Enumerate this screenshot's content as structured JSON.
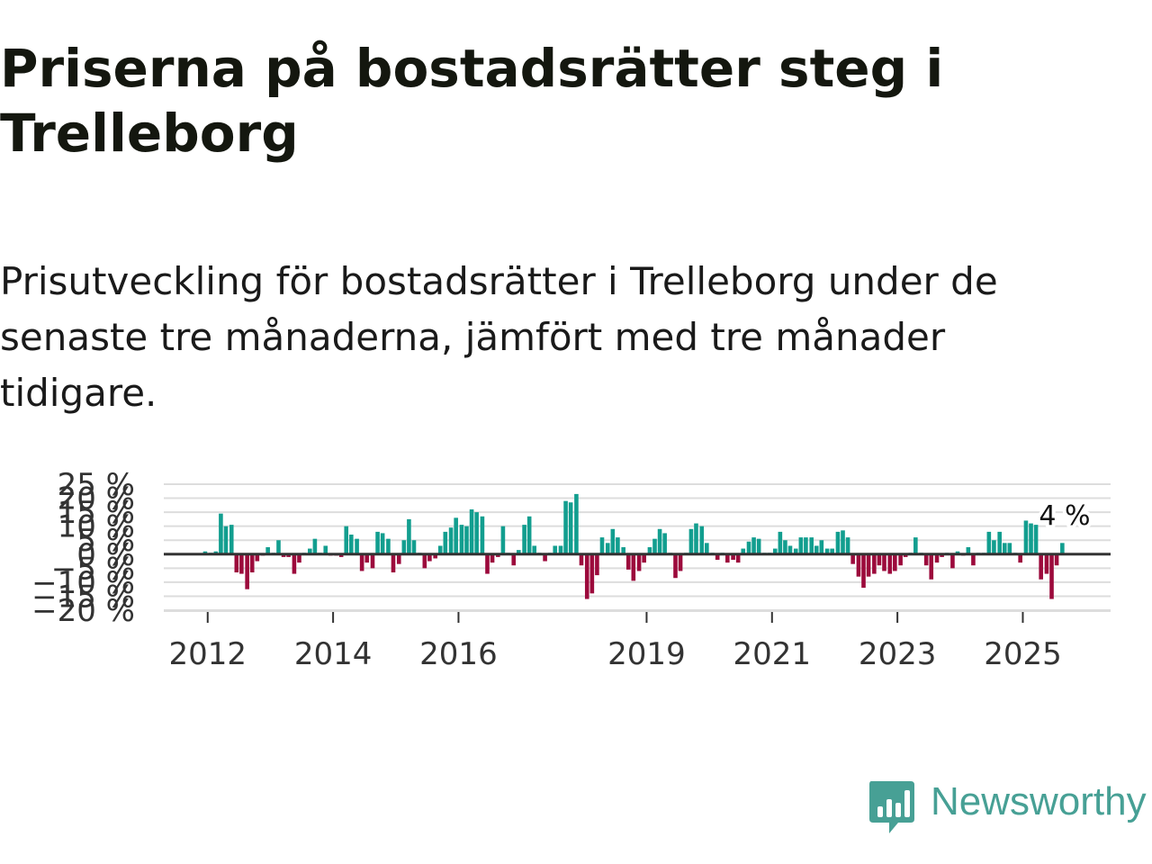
{
  "header": {
    "title": "Priserna på bostadsrätter steg i Trelleborg",
    "subtitle": "Prisutveckling för bostadsrätter i Trelleborg under de senaste tre månaderna, jämfört med tre månader tidigare."
  },
  "brand": {
    "name": "Newsworthy",
    "color": "#47A095"
  },
  "chart_data": {
    "type": "bar",
    "title": "Priserna på bostadsrätter steg i Trelleborg",
    "subtitle": "Prisutveckling för bostadsrätter i Trelleborg under de senaste tre månaderna, jämfört med tre månader tidigare.",
    "xlabel": "",
    "ylabel": "",
    "x_tick_labels": [
      "2012",
      "2014",
      "2016",
      "2019",
      "2021",
      "2023",
      "2025"
    ],
    "x_tick_years": [
      2012,
      2014,
      2016,
      2019,
      2021,
      2023,
      2025
    ],
    "y_tick_labels": [
      "25 %",
      "20 %",
      "15 %",
      "10 %",
      "5 %",
      "0 %",
      "−5 %",
      "−10 %",
      "−15 %",
      "−20 %"
    ],
    "y_ticks": [
      25,
      20,
      15,
      10,
      5,
      0,
      -5,
      -10,
      -15,
      -20
    ],
    "ylim": [
      -20,
      25
    ],
    "xlim": [
      2011.3,
      2026.4
    ],
    "grid": true,
    "colors": {
      "positive": "#129E8F",
      "negative": "#9C0A3C",
      "zero_line": "#333333",
      "grid": "#dddddd"
    },
    "annotation": {
      "text": "4 %"
    },
    "series": [
      {
        "x": 2011.96,
        "value": 1
      },
      {
        "x": 2012.05,
        "value": 0.5
      },
      {
        "x": 2012.13,
        "value": 1
      },
      {
        "x": 2012.21,
        "value": 14.5
      },
      {
        "x": 2012.29,
        "value": 10
      },
      {
        "x": 2012.38,
        "value": 10.5
      },
      {
        "x": 2012.46,
        "value": -6.5
      },
      {
        "x": 2012.54,
        "value": -7
      },
      {
        "x": 2012.63,
        "value": -12.5
      },
      {
        "x": 2012.71,
        "value": -6.5
      },
      {
        "x": 2012.79,
        "value": -2.5
      },
      {
        "x": 2012.88,
        "value": -0.5
      },
      {
        "x": 2012.96,
        "value": 2.5
      },
      {
        "x": 2013.05,
        "value": 0.5
      },
      {
        "x": 2013.13,
        "value": 5
      },
      {
        "x": 2013.21,
        "value": -1
      },
      {
        "x": 2013.29,
        "value": -1
      },
      {
        "x": 2013.38,
        "value": -7
      },
      {
        "x": 2013.46,
        "value": -3
      },
      {
        "x": 2013.54,
        "value": 0.5
      },
      {
        "x": 2013.63,
        "value": 2
      },
      {
        "x": 2013.71,
        "value": 5.5
      },
      {
        "x": 2013.79,
        "value": 0.5
      },
      {
        "x": 2013.88,
        "value": 3
      },
      {
        "x": 2013.96,
        "value": -0.5
      },
      {
        "x": 2014.05,
        "value": -0.5
      },
      {
        "x": 2014.13,
        "value": -1
      },
      {
        "x": 2014.21,
        "value": 10
      },
      {
        "x": 2014.29,
        "value": 7
      },
      {
        "x": 2014.38,
        "value": 5.5
      },
      {
        "x": 2014.46,
        "value": -6
      },
      {
        "x": 2014.54,
        "value": -3
      },
      {
        "x": 2014.63,
        "value": -5
      },
      {
        "x": 2014.71,
        "value": 8
      },
      {
        "x": 2014.79,
        "value": 7.5
      },
      {
        "x": 2014.88,
        "value": 5.5
      },
      {
        "x": 2014.96,
        "value": -6.5
      },
      {
        "x": 2015.05,
        "value": -3.5
      },
      {
        "x": 2015.13,
        "value": 5
      },
      {
        "x": 2015.21,
        "value": 12.5
      },
      {
        "x": 2015.29,
        "value": 5
      },
      {
        "x": 2015.38,
        "value": 0.5
      },
      {
        "x": 2015.46,
        "value": -5
      },
      {
        "x": 2015.54,
        "value": -2.5
      },
      {
        "x": 2015.63,
        "value": -1.5
      },
      {
        "x": 2015.71,
        "value": 3
      },
      {
        "x": 2015.79,
        "value": 8
      },
      {
        "x": 2015.88,
        "value": 9.5
      },
      {
        "x": 2015.96,
        "value": 13
      },
      {
        "x": 2016.05,
        "value": 10.5
      },
      {
        "x": 2016.13,
        "value": 10
      },
      {
        "x": 2016.21,
        "value": 16
      },
      {
        "x": 2016.29,
        "value": 15
      },
      {
        "x": 2016.38,
        "value": 13.5
      },
      {
        "x": 2016.46,
        "value": -7
      },
      {
        "x": 2016.54,
        "value": -3
      },
      {
        "x": 2016.63,
        "value": -1
      },
      {
        "x": 2016.71,
        "value": 10
      },
      {
        "x": 2016.79,
        "value": 0.5
      },
      {
        "x": 2016.88,
        "value": -4
      },
      {
        "x": 2016.96,
        "value": 1.5
      },
      {
        "x": 2017.05,
        "value": 10.5
      },
      {
        "x": 2017.13,
        "value": 13.5
      },
      {
        "x": 2017.21,
        "value": 3
      },
      {
        "x": 2017.29,
        "value": 0.5
      },
      {
        "x": 2017.38,
        "value": -2.5
      },
      {
        "x": 2017.46,
        "value": 0.5
      },
      {
        "x": 2017.54,
        "value": 3
      },
      {
        "x": 2017.63,
        "value": 3
      },
      {
        "x": 2017.71,
        "value": 19
      },
      {
        "x": 2017.79,
        "value": 18.5
      },
      {
        "x": 2017.88,
        "value": 21.5
      },
      {
        "x": 2017.96,
        "value": -4
      },
      {
        "x": 2018.05,
        "value": -16
      },
      {
        "x": 2018.13,
        "value": -14
      },
      {
        "x": 2018.21,
        "value": -7.5
      },
      {
        "x": 2018.29,
        "value": 6
      },
      {
        "x": 2018.38,
        "value": 4
      },
      {
        "x": 2018.46,
        "value": 9
      },
      {
        "x": 2018.54,
        "value": 6
      },
      {
        "x": 2018.63,
        "value": 2.5
      },
      {
        "x": 2018.71,
        "value": -5.5
      },
      {
        "x": 2018.79,
        "value": -9.5
      },
      {
        "x": 2018.88,
        "value": -6
      },
      {
        "x": 2018.96,
        "value": -3
      },
      {
        "x": 2019.05,
        "value": 2.5
      },
      {
        "x": 2019.13,
        "value": 5.5
      },
      {
        "x": 2019.21,
        "value": 9
      },
      {
        "x": 2019.29,
        "value": 7.5
      },
      {
        "x": 2019.38,
        "value": 0.5
      },
      {
        "x": 2019.46,
        "value": -8.5
      },
      {
        "x": 2019.54,
        "value": -6
      },
      {
        "x": 2019.63,
        "value": 0.5
      },
      {
        "x": 2019.71,
        "value": 9
      },
      {
        "x": 2019.79,
        "value": 11
      },
      {
        "x": 2019.88,
        "value": 10
      },
      {
        "x": 2019.96,
        "value": 4
      },
      {
        "x": 2020.05,
        "value": 0.5
      },
      {
        "x": 2020.13,
        "value": -2
      },
      {
        "x": 2020.21,
        "value": 0.5
      },
      {
        "x": 2020.29,
        "value": -3
      },
      {
        "x": 2020.38,
        "value": -2
      },
      {
        "x": 2020.46,
        "value": -3
      },
      {
        "x": 2020.54,
        "value": 2
      },
      {
        "x": 2020.63,
        "value": 4.5
      },
      {
        "x": 2020.71,
        "value": 6
      },
      {
        "x": 2020.79,
        "value": 5.5
      },
      {
        "x": 2020.88,
        "value": 0.5
      },
      {
        "x": 2020.96,
        "value": 0.5
      },
      {
        "x": 2021.05,
        "value": 2
      },
      {
        "x": 2021.13,
        "value": 8
      },
      {
        "x": 2021.21,
        "value": 5
      },
      {
        "x": 2021.29,
        "value": 3
      },
      {
        "x": 2021.38,
        "value": 2
      },
      {
        "x": 2021.46,
        "value": 6
      },
      {
        "x": 2021.54,
        "value": 6
      },
      {
        "x": 2021.63,
        "value": 6
      },
      {
        "x": 2021.71,
        "value": 3
      },
      {
        "x": 2021.79,
        "value": 5
      },
      {
        "x": 2021.88,
        "value": 2
      },
      {
        "x": 2021.96,
        "value": 2
      },
      {
        "x": 2022.05,
        "value": 8
      },
      {
        "x": 2022.13,
        "value": 8.5
      },
      {
        "x": 2022.21,
        "value": 6
      },
      {
        "x": 2022.29,
        "value": -3.5
      },
      {
        "x": 2022.38,
        "value": -8
      },
      {
        "x": 2022.46,
        "value": -12
      },
      {
        "x": 2022.54,
        "value": -8
      },
      {
        "x": 2022.63,
        "value": -7
      },
      {
        "x": 2022.71,
        "value": -4
      },
      {
        "x": 2022.79,
        "value": -6
      },
      {
        "x": 2022.88,
        "value": -7
      },
      {
        "x": 2022.96,
        "value": -6
      },
      {
        "x": 2023.05,
        "value": -4
      },
      {
        "x": 2023.13,
        "value": -1
      },
      {
        "x": 2023.21,
        "value": 0.5
      },
      {
        "x": 2023.29,
        "value": 6
      },
      {
        "x": 2023.38,
        "value": 0.5
      },
      {
        "x": 2023.46,
        "value": -4
      },
      {
        "x": 2023.54,
        "value": -9
      },
      {
        "x": 2023.63,
        "value": -3
      },
      {
        "x": 2023.71,
        "value": -1
      },
      {
        "x": 2023.79,
        "value": 0.5
      },
      {
        "x": 2023.88,
        "value": -5
      },
      {
        "x": 2023.96,
        "value": 1
      },
      {
        "x": 2024.05,
        "value": -0.5
      },
      {
        "x": 2024.13,
        "value": 2.5
      },
      {
        "x": 2024.21,
        "value": -4
      },
      {
        "x": 2024.29,
        "value": 0.5
      },
      {
        "x": 2024.38,
        "value": 0.5
      },
      {
        "x": 2024.46,
        "value": 8
      },
      {
        "x": 2024.54,
        "value": 5
      },
      {
        "x": 2024.63,
        "value": 8
      },
      {
        "x": 2024.71,
        "value": 4
      },
      {
        "x": 2024.79,
        "value": 4
      },
      {
        "x": 2024.88,
        "value": 0.5
      },
      {
        "x": 2024.96,
        "value": -3
      },
      {
        "x": 2025.05,
        "value": 12
      },
      {
        "x": 2025.13,
        "value": 11
      },
      {
        "x": 2025.21,
        "value": 10.5
      },
      {
        "x": 2025.29,
        "value": -9
      },
      {
        "x": 2025.38,
        "value": -7
      },
      {
        "x": 2025.46,
        "value": -16
      },
      {
        "x": 2025.54,
        "value": -4
      },
      {
        "x": 2025.63,
        "value": 4
      }
    ]
  }
}
